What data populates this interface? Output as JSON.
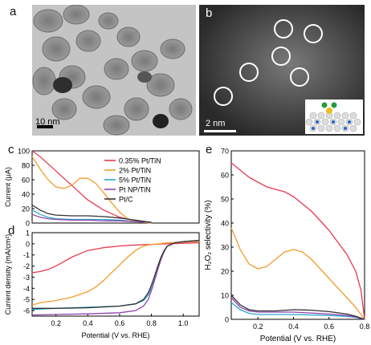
{
  "panels": {
    "a": {
      "letter": "a",
      "scale_label": "10 nm"
    },
    "b": {
      "letter": "b",
      "scale_label": "2 nm"
    },
    "c": {
      "letter": "c"
    },
    "d": {
      "letter": "d"
    },
    "e": {
      "letter": "e"
    }
  },
  "chart_data": [
    {
      "id": "c",
      "type": "line",
      "ylabel": "Current (μA)",
      "ylim": [
        0,
        100
      ],
      "xlim": [
        0.05,
        1.1
      ],
      "yticks": [
        "0",
        "20",
        "40",
        "60",
        "80",
        "100"
      ],
      "legend": [
        {
          "name": "0.35% Pt/TiN",
          "color": "#e8384f"
        },
        {
          "name": "2% Pt/TiN",
          "color": "#f39c2a"
        },
        {
          "name": "5% Pt/TiN",
          "color": "#2aa7c9"
        },
        {
          "name": "Pt NP/TiN",
          "color": "#8e44ad"
        },
        {
          "name": "Pt/C",
          "color": "#333333"
        }
      ],
      "series": [
        {
          "name": "0.35% Pt/TiN",
          "color": "#e8384f",
          "x": [
            0.05,
            0.1,
            0.15,
            0.2,
            0.3,
            0.4,
            0.5,
            0.6,
            0.7,
            0.8
          ],
          "y": [
            100,
            92,
            82,
            72,
            52,
            32,
            18,
            8,
            3,
            1
          ]
        },
        {
          "name": "2% Pt/TiN",
          "color": "#f39c2a",
          "x": [
            0.05,
            0.1,
            0.15,
            0.2,
            0.25,
            0.3,
            0.35,
            0.4,
            0.45,
            0.5,
            0.55,
            0.6,
            0.65,
            0.7,
            0.75,
            0.8
          ],
          "y": [
            92,
            75,
            60,
            50,
            48,
            52,
            62,
            62,
            55,
            42,
            28,
            15,
            6,
            2,
            1,
            0
          ]
        },
        {
          "name": "5% Pt/TiN",
          "color": "#2aa7c9",
          "x": [
            0.05,
            0.1,
            0.15,
            0.2,
            0.3,
            0.4,
            0.5,
            0.6,
            0.7,
            0.8
          ],
          "y": [
            18,
            12,
            8,
            6,
            5,
            5,
            5,
            4,
            2,
            1
          ]
        },
        {
          "name": "Pt NP/TiN",
          "color": "#8e44ad",
          "x": [
            0.05,
            0.1,
            0.15,
            0.2,
            0.3,
            0.4,
            0.5,
            0.6,
            0.7,
            0.8
          ],
          "y": [
            12,
            8,
            6,
            5,
            4,
            4,
            3,
            3,
            2,
            1
          ]
        },
        {
          "name": "Pt/C",
          "color": "#333333",
          "x": [
            0.05,
            0.1,
            0.15,
            0.2,
            0.3,
            0.4,
            0.5,
            0.6,
            0.7,
            0.8
          ],
          "y": [
            25,
            18,
            13,
            11,
            10,
            10,
            9,
            7,
            4,
            1
          ]
        }
      ]
    },
    {
      "id": "d",
      "type": "line",
      "xlabel": "Potential (V vs. RHE)",
      "ylabel": "Current density (mA/cm²)",
      "ylim": [
        -6.5,
        1
      ],
      "xlim": [
        0.05,
        1.1
      ],
      "yticks": [
        "1",
        "0",
        "-1",
        "-2",
        "-3",
        "-4",
        "-5",
        "-6"
      ],
      "xticks": [
        "0.2",
        "0.4",
        "0.6",
        "0.8",
        "1.0"
      ],
      "series": [
        {
          "name": "0.35% Pt/TiN",
          "color": "#e8384f",
          "x": [
            0.05,
            0.1,
            0.15,
            0.2,
            0.25,
            0.3,
            0.35,
            0.4,
            0.5,
            0.6,
            0.7,
            0.8,
            0.9,
            1.0,
            1.1
          ],
          "y": [
            -2.6,
            -2.5,
            -2.3,
            -2.0,
            -1.6,
            -1.2,
            -0.9,
            -0.6,
            -0.35,
            -0.2,
            -0.1,
            -0.05,
            0,
            0.05,
            0.1
          ]
        },
        {
          "name": "2% Pt/TiN",
          "color": "#f39c2a",
          "x": [
            0.05,
            0.1,
            0.2,
            0.3,
            0.4,
            0.45,
            0.5,
            0.55,
            0.6,
            0.65,
            0.7,
            0.75,
            0.8,
            0.85,
            0.9,
            1.0,
            1.1
          ],
          "y": [
            -5.5,
            -5.3,
            -5.1,
            -4.8,
            -4.3,
            -3.9,
            -3.3,
            -2.6,
            -1.9,
            -1.2,
            -0.6,
            -0.2,
            -0.05,
            0,
            0.1,
            0.15,
            0.2
          ]
        },
        {
          "name": "5% Pt/TiN",
          "color": "#2aa7c9",
          "x": [
            0.05,
            0.2,
            0.4,
            0.6,
            0.7,
            0.75,
            0.78,
            0.8,
            0.82,
            0.84,
            0.86,
            0.88,
            0.9,
            0.95,
            1.0,
            1.1
          ],
          "y": [
            -5.9,
            -5.8,
            -5.7,
            -5.6,
            -5.4,
            -5.1,
            -4.6,
            -4.0,
            -3.2,
            -2.3,
            -1.4,
            -0.7,
            -0.2,
            0.1,
            0.2,
            0.3
          ]
        },
        {
          "name": "Pt NP/TiN",
          "color": "#8e44ad",
          "x": [
            0.05,
            0.2,
            0.4,
            0.6,
            0.7,
            0.75,
            0.78,
            0.8,
            0.82,
            0.84,
            0.86,
            0.88,
            0.9,
            0.95,
            1.0,
            1.1
          ],
          "y": [
            -6.4,
            -6.35,
            -6.3,
            -6.2,
            -6.0,
            -5.6,
            -5.0,
            -4.2,
            -3.3,
            -2.3,
            -1.4,
            -0.7,
            -0.2,
            0.1,
            0.2,
            0.3
          ]
        },
        {
          "name": "Pt/C",
          "color": "#333333",
          "x": [
            0.05,
            0.2,
            0.4,
            0.6,
            0.7,
            0.75,
            0.78,
            0.8,
            0.82,
            0.84,
            0.86,
            0.88,
            0.9,
            0.95,
            1.0,
            1.1
          ],
          "y": [
            -5.8,
            -5.8,
            -5.75,
            -5.6,
            -5.4,
            -5.0,
            -4.4,
            -3.7,
            -2.9,
            -2.0,
            -1.2,
            -0.6,
            -0.2,
            0.1,
            0.2,
            0.3
          ]
        }
      ]
    },
    {
      "id": "e",
      "type": "line",
      "xlabel": "Potential (V vs. RHE)",
      "ylabel": "H₂O₂ selectivity (%)",
      "ylim": [
        0,
        70
      ],
      "xlim": [
        0.05,
        0.8
      ],
      "yticks": [
        "0",
        "10",
        "20",
        "30",
        "40",
        "50",
        "60",
        "70"
      ],
      "xticks": [
        "0.2",
        "0.4",
        "0.6",
        "0.8"
      ],
      "series": [
        {
          "name": "0.35% Pt/TiN",
          "color": "#e8384f",
          "x": [
            0.05,
            0.1,
            0.15,
            0.2,
            0.25,
            0.3,
            0.35,
            0.4,
            0.45,
            0.5,
            0.55,
            0.6,
            0.65,
            0.7,
            0.75,
            0.78,
            0.8
          ],
          "y": [
            65,
            62,
            59,
            57,
            55,
            54,
            53,
            51,
            48,
            45,
            41,
            37,
            32,
            27,
            20,
            12,
            0
          ]
        },
        {
          "name": "2% Pt/TiN",
          "color": "#f39c2a",
          "x": [
            0.05,
            0.1,
            0.15,
            0.2,
            0.25,
            0.3,
            0.35,
            0.4,
            0.45,
            0.5,
            0.55,
            0.6,
            0.65,
            0.7,
            0.75,
            0.78,
            0.8
          ],
          "y": [
            38,
            29,
            23,
            21,
            22,
            25,
            28,
            29,
            28,
            25,
            21,
            17,
            13,
            9,
            5,
            2,
            0
          ]
        },
        {
          "name": "5% Pt/TiN",
          "color": "#2aa7c9",
          "x": [
            0.05,
            0.1,
            0.15,
            0.2,
            0.3,
            0.4,
            0.5,
            0.6,
            0.7,
            0.75,
            0.8
          ],
          "y": [
            7,
            4,
            2.5,
            2,
            2,
            2,
            1.8,
            1.6,
            1.2,
            0.8,
            0
          ]
        },
        {
          "name": "Pt NP/TiN",
          "color": "#8e44ad",
          "x": [
            0.05,
            0.1,
            0.15,
            0.2,
            0.3,
            0.4,
            0.5,
            0.6,
            0.7,
            0.75,
            0.8
          ],
          "y": [
            9,
            5,
            3.5,
            3,
            3,
            3,
            2.6,
            2.2,
            1.6,
            1,
            0
          ]
        },
        {
          "name": "Pt/C",
          "color": "#333333",
          "x": [
            0.05,
            0.1,
            0.15,
            0.2,
            0.3,
            0.4,
            0.5,
            0.6,
            0.7,
            0.75,
            0.8
          ],
          "y": [
            10,
            6,
            4,
            3.5,
            3.5,
            4,
            3.8,
            3.2,
            2.2,
            1.3,
            0
          ]
        }
      ]
    }
  ]
}
